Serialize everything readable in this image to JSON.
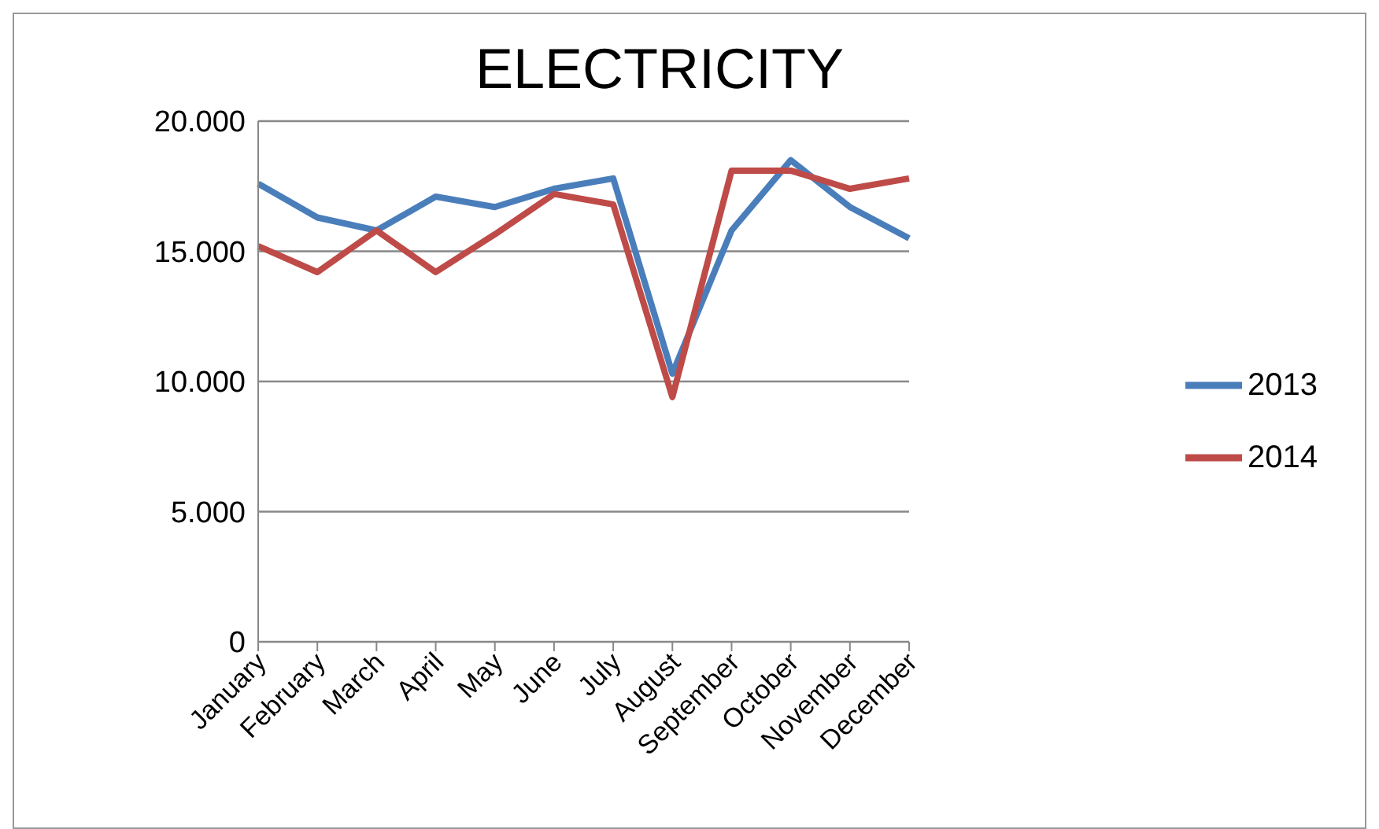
{
  "chart_data": {
    "type": "line",
    "title": "ELECTRICITY",
    "categories": [
      "January",
      "February",
      "March",
      "April",
      "May",
      "June",
      "July",
      "August",
      "September",
      "October",
      "November",
      "December"
    ],
    "series": [
      {
        "name": "2013",
        "color": "#4a7ebb",
        "values": [
          17600,
          16300,
          15800,
          17100,
          16700,
          17400,
          17800,
          10300,
          15800,
          18500,
          16700,
          15500
        ]
      },
      {
        "name": "2014",
        "color": "#be4b48",
        "values": [
          15200,
          14200,
          15800,
          14200,
          15650,
          17200,
          16800,
          9400,
          18100,
          18100,
          17400,
          17800
        ]
      }
    ],
    "ylim": [
      0,
      20000
    ],
    "yticks": [
      {
        "value": 0,
        "label": "0"
      },
      {
        "value": 5000,
        "label": "5.000"
      },
      {
        "value": 10000,
        "label": "10.000"
      },
      {
        "value": 15000,
        "label": "15.000"
      },
      {
        "value": 20000,
        "label": "20.000"
      }
    ],
    "grid": "y",
    "legend": "right",
    "marker": "none",
    "line_style": "solid"
  }
}
